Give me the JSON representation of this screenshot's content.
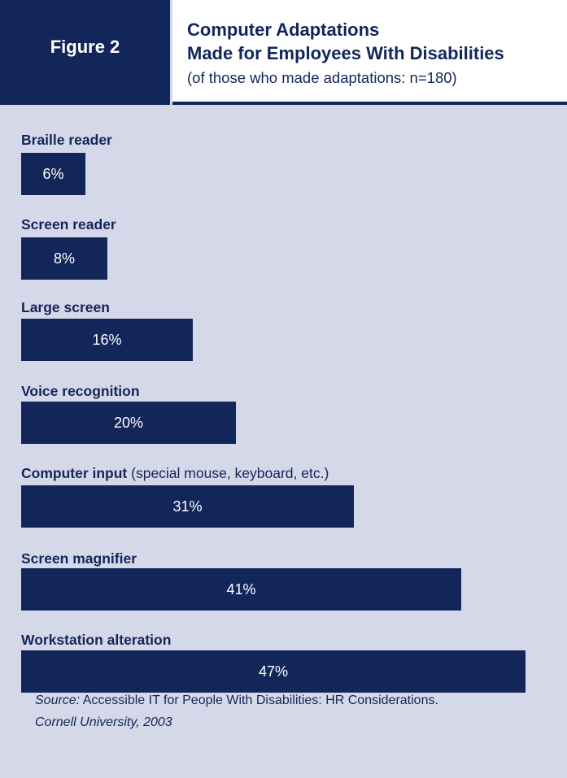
{
  "header": {
    "figure_label": "Figure 2",
    "title_line1": "Computer Adaptations",
    "title_line2": "Made for Employees With Disabilities",
    "subtitle": "(of those who made adaptations: n=180)"
  },
  "chart_data": {
    "type": "bar",
    "orientation": "horizontal",
    "title": "Computer Adaptations Made for Employees With Disabilities",
    "subtitle": "(of those who made adaptations: n=180)",
    "unit": "%",
    "categories": [
      {
        "label": "Braille reader",
        "note": ""
      },
      {
        "label": "Screen reader",
        "note": ""
      },
      {
        "label": "Large screen",
        "note": ""
      },
      {
        "label": "Voice recognition",
        "note": ""
      },
      {
        "label": "Computer input",
        "note": " (special mouse, keyboard, etc.)"
      },
      {
        "label": "Screen magnifier",
        "note": ""
      },
      {
        "label": "Workstation alteration",
        "note": ""
      }
    ],
    "values": [
      6,
      8,
      16,
      20,
      31,
      41,
      47
    ],
    "value_labels": [
      "6%",
      "8%",
      "16%",
      "20%",
      "31%",
      "41%",
      "47%"
    ],
    "colors": {
      "bar": "#13265a",
      "bar_text": "#ffffff",
      "background": "#d5d8e8"
    }
  },
  "source": {
    "prefix": "Source:",
    "text": " Accessible IT for People With Disabilities: HR Considerations.",
    "line2": "Cornell University, 2003"
  }
}
